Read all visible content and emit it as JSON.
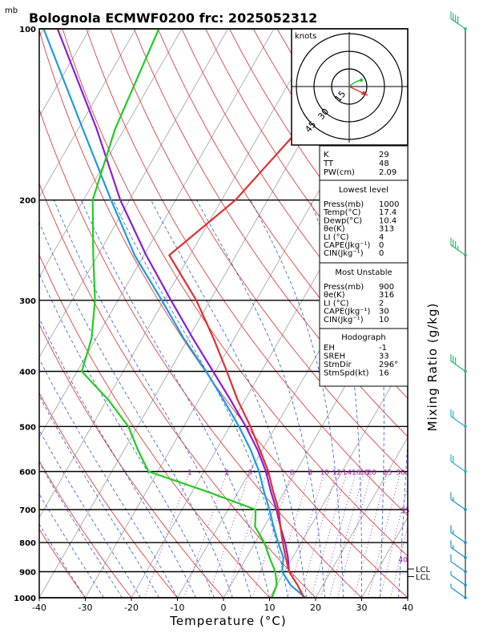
{
  "header": {
    "unit_mb": "mb",
    "title": "Bolognola ECMWF0200  frc: 2025052312"
  },
  "axes": {
    "xlabel": "Temperature (°C)",
    "right_label": "Mixing Ratio  (g/kg)",
    "hodograph_unit": "knots"
  },
  "chart_data": {
    "type": "line",
    "chart_kind": "skew-T log-P diagram",
    "title": "Bolognola ECMWF0200  frc: 2025052312",
    "xlabel": "Temperature (°C)",
    "ylabel": "mb",
    "xlim": [
      -40,
      40
    ],
    "ylim": [
      1000,
      100
    ],
    "y_scale": "log",
    "x_ticks": [
      "-40",
      "-30",
      "-20",
      "-10",
      "0",
      "10",
      "20",
      "30",
      "40"
    ],
    "y_ticks": [
      "100",
      "200",
      "300",
      "400",
      "500",
      "600",
      "700",
      "800",
      "900",
      "1000"
    ],
    "mixing_ratio_labels": [
      "1",
      "2",
      "3",
      "4",
      "6",
      "8",
      "10",
      "12",
      "14",
      "16",
      "18",
      "20",
      "25",
      "30",
      "35",
      "40"
    ],
    "lcl_labels": [
      "LCL",
      "LCL"
    ],
    "series": [
      {
        "name": "Temperature",
        "color": "#e03030",
        "points": [
          [
            1000,
            17.5
          ],
          [
            950,
            14.5
          ],
          [
            900,
            11.0
          ],
          [
            850,
            8.5
          ],
          [
            800,
            6.0
          ],
          [
            750,
            3.5
          ],
          [
            700,
            1.0
          ],
          [
            650,
            -2.5
          ],
          [
            600,
            -6.0
          ],
          [
            550,
            -10.5
          ],
          [
            500,
            -15.5
          ],
          [
            450,
            -21.5
          ],
          [
            400,
            -27.5
          ],
          [
            350,
            -34.5
          ],
          [
            300,
            -43.0
          ],
          [
            250,
            -54.5
          ],
          [
            200,
            -47.0
          ],
          [
            150,
            -42.0
          ],
          [
            100,
            -40.0
          ]
        ]
      },
      {
        "name": "Dewpoint",
        "color": "#22cc22",
        "points": [
          [
            1000,
            10.5
          ],
          [
            950,
            10.0
          ],
          [
            900,
            8.0
          ],
          [
            850,
            5.0
          ],
          [
            800,
            2.0
          ],
          [
            750,
            -2.0
          ],
          [
            700,
            -4.0
          ],
          [
            650,
            -17.0
          ],
          [
            600,
            -32.0
          ],
          [
            550,
            -37.0
          ],
          [
            500,
            -42.0
          ],
          [
            450,
            -49.5
          ],
          [
            400,
            -59.0
          ],
          [
            350,
            -61.0
          ],
          [
            300,
            -65.0
          ],
          [
            250,
            -71.0
          ],
          [
            200,
            -78.0
          ],
          [
            150,
            -82.0
          ],
          [
            100,
            -85.0
          ]
        ]
      },
      {
        "name": "Parcel",
        "color": "#8a1ed6",
        "points": [
          [
            900,
            11.0
          ],
          [
            850,
            9.0
          ],
          [
            800,
            6.5
          ],
          [
            750,
            3.5
          ],
          [
            700,
            0.5
          ],
          [
            650,
            -3.0
          ],
          [
            600,
            -6.5
          ],
          [
            550,
            -11.0
          ],
          [
            500,
            -16.5
          ],
          [
            450,
            -23.0
          ],
          [
            400,
            -30.5
          ],
          [
            350,
            -39.0
          ],
          [
            300,
            -48.5
          ],
          [
            250,
            -59.5
          ],
          [
            200,
            -72.0
          ],
          [
            150,
            -86.0
          ],
          [
            100,
            -107.0
          ]
        ]
      },
      {
        "name": "Virtual parcel",
        "color": "#1e9be0",
        "points": [
          [
            1000,
            17.8
          ],
          [
            950,
            13.0
          ],
          [
            900,
            9.5
          ],
          [
            850,
            8.0
          ],
          [
            800,
            5.0
          ],
          [
            750,
            2.0
          ],
          [
            700,
            -1.0
          ],
          [
            650,
            -4.5
          ],
          [
            600,
            -8.0
          ],
          [
            550,
            -12.5
          ],
          [
            500,
            -18.0
          ],
          [
            450,
            -24.5
          ],
          [
            400,
            -32.0
          ],
          [
            350,
            -41.0
          ],
          [
            300,
            -50.5
          ],
          [
            250,
            -62.0
          ],
          [
            200,
            -74.0
          ],
          [
            150,
            -89.0
          ],
          [
            100,
            -110.0
          ]
        ]
      }
    ],
    "wind_barbs": [
      {
        "p": 1000,
        "speed_kt": 5
      },
      {
        "p": 950,
        "speed_kt": 5
      },
      {
        "p": 900,
        "speed_kt": 10
      },
      {
        "p": 850,
        "speed_kt": 15
      },
      {
        "p": 800,
        "speed_kt": 15
      },
      {
        "p": 700,
        "speed_kt": 15
      },
      {
        "p": 600,
        "speed_kt": 20
      },
      {
        "p": 500,
        "speed_kt": 20
      },
      {
        "p": 400,
        "speed_kt": 30
      },
      {
        "p": 250,
        "speed_kt": 35
      },
      {
        "p": 100,
        "speed_kt": 40
      }
    ],
    "hodograph_ring_labels": [
      "15",
      "30",
      "45"
    ]
  },
  "indices": {
    "general": [
      {
        "label": "K",
        "value": "29"
      },
      {
        "label": "TT",
        "value": "48"
      },
      {
        "label": "PW(cm)",
        "value": "2.09"
      }
    ],
    "lowest_title": "Lowest level",
    "lowest": [
      {
        "label": "Press(mb)",
        "value": "1000"
      },
      {
        "label": "Temp(°C)",
        "value": "17.4"
      },
      {
        "label": "Dewp(°C)",
        "value": "10.4"
      },
      {
        "label": "θe(K)",
        "value": "313"
      },
      {
        "label": "LI (°C)",
        "value": "4"
      },
      {
        "label": "CAPE(Jkg⁻¹)",
        "value": "0"
      },
      {
        "label": "CIN(Jkg⁻¹)",
        "value": "0"
      }
    ],
    "unstable_title": "Most Unstable",
    "unstable": [
      {
        "label": "Press(mb)",
        "value": "900"
      },
      {
        "label": "θe(K)",
        "value": "316"
      },
      {
        "label": "LI (°C)",
        "value": "2"
      },
      {
        "label": "CAPE(Jkg⁻¹)",
        "value": "30"
      },
      {
        "label": "CIN(Jkg⁻¹)",
        "value": "10"
      }
    ],
    "hodo_title": "Hodograph",
    "hodo": [
      {
        "label": "EH",
        "value": "-1"
      },
      {
        "label": "SREH",
        "value": "33"
      },
      {
        "label": "StmDir",
        "value": "296°"
      },
      {
        "label": "StmSpd(kt)",
        "value": "16"
      }
    ]
  },
  "colors": {
    "temperature": "#e03030",
    "dewpoint": "#22cc22",
    "parcel": "#8a1ed6",
    "virtual": "#1e9be0",
    "dry_adiabat": "#e04040",
    "moist_adiabat": "#2a5ad8",
    "isotherm": "#b0b0b0",
    "mixing_ratio": "#a020a0",
    "barb": "#1e8fd0"
  }
}
